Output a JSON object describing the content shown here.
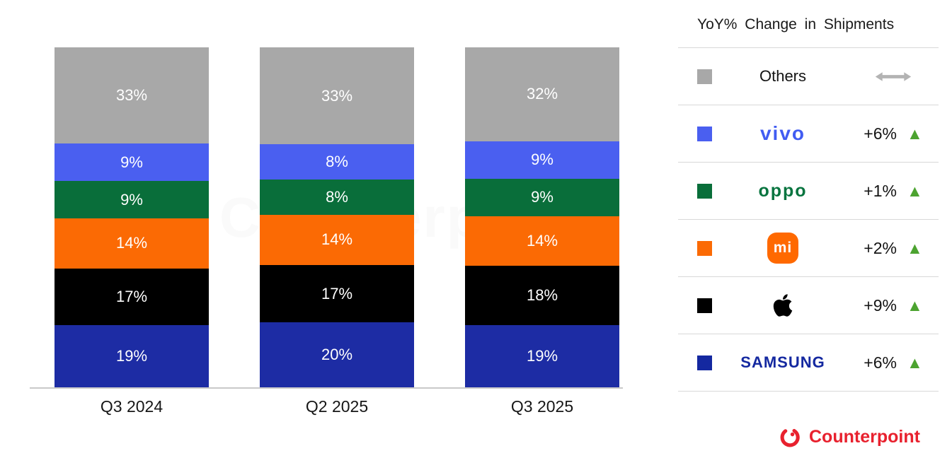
{
  "chart_data": {
    "type": "bar",
    "stacked": true,
    "unit": "%",
    "categories": [
      "Q3 2024",
      "Q2 2025",
      "Q3 2025"
    ],
    "series": [
      {
        "name": "Others",
        "color": "#a8a8a8",
        "values": [
          33,
          33,
          32
        ]
      },
      {
        "name": "vivo",
        "color": "#4a5ff0",
        "values": [
          9,
          8,
          9
        ]
      },
      {
        "name": "OPPO",
        "color": "#096e3a",
        "values": [
          9,
          8,
          9
        ]
      },
      {
        "name": "Xiaomi",
        "color": "#fb6a04",
        "values": [
          14,
          14,
          14
        ]
      },
      {
        "name": "Apple",
        "color": "#000000",
        "values": [
          17,
          17,
          18
        ]
      },
      {
        "name": "Samsung",
        "color": "#1d2ca4",
        "values": [
          19,
          20,
          19
        ]
      }
    ],
    "ylim": [
      0,
      100
    ],
    "grid": false,
    "legend_position": "right",
    "value_label_color": "#ffffff"
  },
  "legend": {
    "title": "YoY% Change in Shipments",
    "up_glyph": "▲",
    "up_color": "#4ca330",
    "arrow_color": "#b3b3b3",
    "rows": [
      {
        "name": "Others",
        "swatch": "#a8a8a8",
        "label": "Others",
        "change": "",
        "trend": "flat"
      },
      {
        "name": "vivo",
        "swatch": "#4a5ff0",
        "logo_text": "vivo",
        "change": "+6%",
        "trend": "up"
      },
      {
        "name": "OPPO",
        "swatch": "#096e3a",
        "logo_text": "oppo",
        "change": "+1%",
        "trend": "up"
      },
      {
        "name": "Xiaomi",
        "swatch": "#fb6a04",
        "logo_text": "mi",
        "change": "+2%",
        "trend": "up"
      },
      {
        "name": "Apple",
        "swatch": "#000000",
        "logo_text": "",
        "change": "+9%",
        "trend": "up"
      },
      {
        "name": "Samsung",
        "swatch": "#1428a0",
        "logo_text": "SAMSUNG",
        "change": "+6%",
        "trend": "up"
      }
    ]
  },
  "watermark": {
    "text": "Counterpoint"
  },
  "footer": {
    "brand": "Counterpoint",
    "color": "#e8212e"
  }
}
